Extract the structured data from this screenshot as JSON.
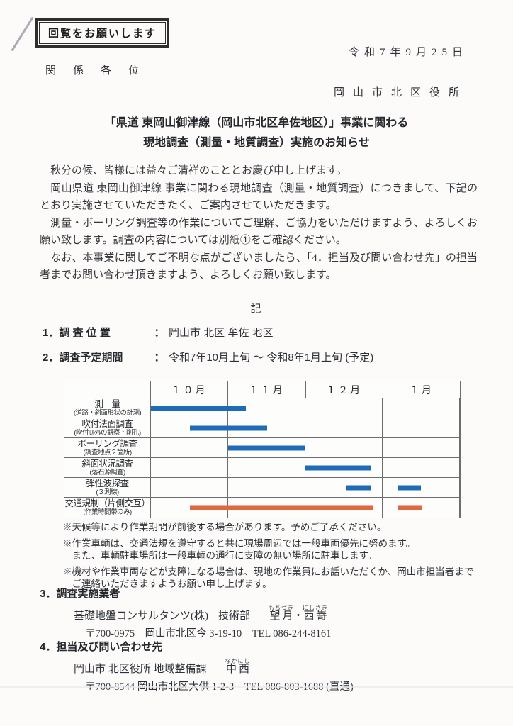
{
  "document": {
    "circulation_stamp": "回覧をお願いします",
    "date": "令和7年9月25日",
    "recipients": "関係各位",
    "sender": "岡山市北区役所",
    "title_line1": "「県道 東岡山御津線（岡山市北区牟佐地区）」事業に関わる",
    "title_line2": "現地調査（測量・地質調査）実施のお知らせ",
    "ki_marker": "記"
  },
  "body": {
    "paragraphs": [
      "　秋分の候、皆様には益々ご清祥のこととお慶び申し上げます。",
      "　岡山県道 東岡山御津線 事業に関わる現地調査（測量・地質調査）につきまして、下記のとおり実施させていただきたく、ご案内させていただきます。",
      "　測量・ボーリング調査等の作業についてご理解、ご協力をいただけますよう、よろしくお願い致します。調査の内容については別紙①をご確認ください。",
      "　なお、本事業に関してご不明な点がございましたら、「4．担当及び問い合わせ先」の担当者までお問い合わせ頂きますよう、よろしくお願い致します。"
    ]
  },
  "items": [
    {
      "label": "1．調 査 位 置",
      "colon": "：",
      "value": "岡山市 北区 牟佐 地区"
    },
    {
      "label": "2．調査予定期間",
      "colon": "：",
      "value": "令和7年10月上旬 ～ 令和8年1月上旬 (予定)"
    }
  ],
  "chart_data": {
    "type": "gantt",
    "months": [
      "１０月",
      "１１月",
      "１２月",
      "１月"
    ],
    "bar_colors": {
      "blue": "#1e6cb5",
      "orange": "#e0683c"
    },
    "rows": [
      {
        "label": "測　量",
        "sub": "(道路・斜面形状の計測)",
        "bars": [
          {
            "start": 0.0,
            "end": 1.23,
            "color": "blue"
          }
        ]
      },
      {
        "label": "吹付法面調査",
        "sub": "(吹付ﾓﾙﾀﾙの観察・削孔)",
        "bars": [
          {
            "start": 0.5,
            "end": 1.5,
            "color": "blue"
          }
        ]
      },
      {
        "label": "ボーリング調査",
        "sub": "(調査地点２箇所)",
        "bars": [
          {
            "start": 1.0,
            "end": 2.0,
            "color": "blue"
          }
        ]
      },
      {
        "label": "斜面状況調査",
        "sub": "(落石源調査)",
        "bars": [
          {
            "start": 2.0,
            "end": 2.85,
            "color": "blue"
          }
        ]
      },
      {
        "label": "弾性波探査",
        "sub": "(３測線)",
        "bars": [
          {
            "start": 2.52,
            "end": 2.85,
            "color": "blue"
          },
          {
            "start": 3.2,
            "end": 3.5,
            "color": "blue"
          }
        ]
      },
      {
        "label": "交通規制（片側交互）",
        "sub": "(作業時間帯のみ)",
        "bars": [
          {
            "start": 0.5,
            "end": 2.87,
            "color": "orange"
          },
          {
            "start": 3.2,
            "end": 3.51,
            "color": "orange"
          }
        ]
      }
    ]
  },
  "notes": [
    "※天候等により作業期間が前後する場合があります。予めご了承ください。",
    "※作業車輌は、交通法規を遵守すると共に現場周辺では一般車両優先に努めます。\n　また、車輌駐車場所は一般車輌の通行に支障の無い場所に駐車します。",
    "※機材や作業車両などが支障になる場合は、現地の作業員にお話いただくか、岡山市担当者まで\n　ご連絡いただきますようお願い申し上げます。"
  ],
  "contractor": {
    "header": "3．調査実施業者",
    "company": "基礎地盤コンサルタンツ(株)",
    "department": "技術部",
    "person1": {
      "kanji": "望月",
      "furigana": "もちづき"
    },
    "separator": "・",
    "person2": {
      "kanji": "西嵜",
      "furigana": "にしざき"
    },
    "address": "〒700-0975　岡山市北区今 3-19-10　TEL 086-244-8161"
  },
  "contact": {
    "header": "4．担当及び問い合わせ先",
    "office": "岡山市 北区役所 地域整備課",
    "person": {
      "kanji": "中西",
      "furigana": "なかにし"
    },
    "address": "〒700-8544 岡山市北区大供 1-2-3　TEL 086-803-1688 (直通)"
  }
}
